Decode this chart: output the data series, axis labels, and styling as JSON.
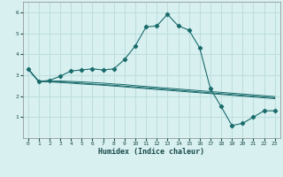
{
  "xlabel": "Humidex (Indice chaleur)",
  "background_color": "#d8f0f0",
  "grid_color": "#c0dede",
  "line_color": "#1a6b6b",
  "xlim": [
    -0.5,
    23.5
  ],
  "ylim": [
    0,
    6.5
  ],
  "xticks": [
    0,
    1,
    2,
    3,
    4,
    5,
    6,
    7,
    8,
    9,
    10,
    11,
    12,
    13,
    14,
    15,
    16,
    17,
    18,
    19,
    20,
    21,
    22,
    23
  ],
  "yticks": [
    1,
    2,
    3,
    4,
    5,
    6
  ],
  "curve1_x": [
    0,
    1,
    2,
    3,
    4,
    5,
    6,
    7,
    8,
    9,
    10,
    11,
    12,
    13,
    14,
    15,
    16,
    17,
    18,
    19,
    20,
    21,
    22,
    23
  ],
  "curve1_y": [
    3.3,
    2.7,
    2.75,
    2.95,
    3.2,
    3.25,
    3.3,
    3.25,
    3.3,
    3.75,
    4.4,
    5.3,
    5.35,
    5.9,
    5.35,
    5.15,
    4.3,
    2.35,
    1.5,
    0.6,
    0.7,
    1.0,
    1.3,
    1.3
  ],
  "curve2_x": [
    0,
    1,
    2,
    3,
    4,
    5,
    6,
    7,
    8,
    9,
    10,
    11,
    12,
    13,
    14,
    15,
    16,
    17,
    18,
    19,
    20,
    21,
    22,
    23
  ],
  "curve2_y": [
    3.3,
    2.7,
    2.72,
    2.72,
    2.7,
    2.68,
    2.65,
    2.62,
    2.58,
    2.55,
    2.5,
    2.46,
    2.42,
    2.38,
    2.34,
    2.3,
    2.26,
    2.22,
    2.18,
    2.14,
    2.1,
    2.06,
    2.02,
    1.98
  ],
  "curve3_x": [
    0,
    1,
    2,
    3,
    4,
    5,
    6,
    7,
    8,
    9,
    10,
    11,
    12,
    13,
    14,
    15,
    16,
    17,
    18,
    19,
    20,
    21,
    22,
    23
  ],
  "curve3_y": [
    3.3,
    2.7,
    2.7,
    2.68,
    2.65,
    2.62,
    2.58,
    2.55,
    2.52,
    2.48,
    2.44,
    2.4,
    2.36,
    2.32,
    2.28,
    2.24,
    2.2,
    2.16,
    2.12,
    2.08,
    2.04,
    2.0,
    1.96,
    1.92
  ],
  "curve4_x": [
    0,
    1,
    2,
    3,
    4,
    5,
    6,
    7,
    8,
    9,
    10,
    11,
    12,
    13,
    14,
    15,
    16,
    17,
    18,
    19,
    20,
    21,
    22,
    23
  ],
  "curve4_y": [
    3.3,
    2.7,
    2.68,
    2.65,
    2.62,
    2.58,
    2.55,
    2.52,
    2.48,
    2.44,
    2.4,
    2.36,
    2.32,
    2.28,
    2.24,
    2.2,
    2.16,
    2.12,
    2.08,
    2.04,
    2.0,
    1.96,
    1.92,
    1.88
  ]
}
